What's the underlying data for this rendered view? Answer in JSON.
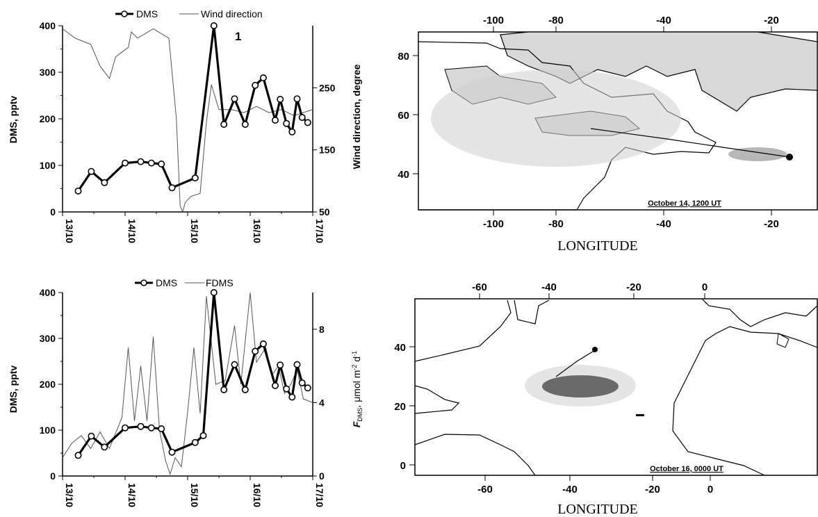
{
  "chart_data": [
    {
      "type": "line",
      "panel_label": "1",
      "legend": [
        "DMS",
        "Wind direction"
      ],
      "ylabel": "DMS, pptv",
      "ylabel_right": "Wind direction, degree",
      "ylim": [
        0,
        400
      ],
      "ylim_right": [
        50,
        350
      ],
      "yticks": [
        "0",
        "100",
        "200",
        "300",
        "400"
      ],
      "yticks_right": [
        "50",
        "150",
        "250"
      ],
      "xlim": [
        13.0,
        17.0
      ],
      "xticks": [
        "13/10",
        "14/10",
        "15/10",
        "16/10",
        "17/10"
      ],
      "series": [
        {
          "name": "DMS",
          "x": [
            13.25,
            13.46,
            13.67,
            14.0,
            14.25,
            14.42,
            14.58,
            14.75,
            15.12,
            15.42,
            15.58,
            15.75,
            15.92,
            16.08,
            16.21,
            16.4,
            16.48,
            16.58,
            16.67,
            16.75,
            16.83,
            16.92
          ],
          "y": [
            45,
            87,
            63,
            105,
            108,
            105,
            103,
            52,
            73,
            400,
            188,
            243,
            188,
            272,
            288,
            197,
            242,
            190,
            172,
            243,
            203,
            192
          ]
        },
        {
          "name": "Wind direction",
          "x": [
            13.0,
            13.2,
            13.45,
            13.6,
            13.75,
            13.85,
            14.05,
            14.1,
            14.2,
            14.45,
            14.7,
            14.82,
            14.88,
            14.92,
            14.96,
            15.05,
            15.2,
            15.3,
            15.38,
            15.5,
            15.7,
            15.9,
            16.1,
            16.3,
            16.5,
            16.7,
            17.0
          ],
          "y": [
            345,
            330,
            320,
            285,
            265,
            300,
            315,
            340,
            330,
            345,
            330,
            200,
            60,
            50,
            65,
            75,
            80,
            195,
            255,
            215,
            215,
            210,
            220,
            210,
            215,
            205,
            215
          ]
        }
      ]
    },
    {
      "type": "map",
      "caption": "October 14, 1200 UT",
      "xlabel": "LONGITUDE",
      "xticks": [
        "-100",
        "-80",
        "-40",
        "-20"
      ],
      "yticks": [
        "40",
        "60",
        "80"
      ],
      "marker": {
        "lon": -15,
        "lat": 46
      }
    },
    {
      "type": "line",
      "legend": [
        "DMS",
        "FDMS"
      ],
      "ylabel": "DMS, pptv",
      "ylabel_right_main": "F",
      "ylabel_right_sub": "DMS",
      "ylabel_right_rest": ", μmol m",
      "ylabel_right_sup": "-2",
      "ylabel_right_tail": " d",
      "ylabel_right_sup2": "-1",
      "ylim": [
        0,
        400
      ],
      "ylim_right": [
        0,
        10
      ],
      "yticks": [
        "0",
        "100",
        "200",
        "300",
        "400"
      ],
      "yticks_right": [
        "0",
        "4",
        "8"
      ],
      "xlim": [
        13.0,
        17.0
      ],
      "xticks": [
        "13/10",
        "14/10",
        "15/10",
        "16/10",
        "17/10"
      ],
      "series": [
        {
          "name": "DMS",
          "x": [
            13.25,
            13.46,
            13.67,
            14.0,
            14.25,
            14.42,
            14.58,
            14.75,
            15.12,
            15.25,
            15.42,
            15.58,
            15.75,
            15.92,
            16.08,
            16.21,
            16.4,
            16.48,
            16.58,
            16.67,
            16.75,
            16.83,
            16.92
          ],
          "y": [
            45,
            87,
            63,
            105,
            108,
            105,
            103,
            52,
            73,
            88,
            400,
            188,
            243,
            188,
            272,
            288,
            197,
            242,
            190,
            172,
            243,
            203,
            192
          ]
        },
        {
          "name": "FDMS",
          "x": [
            13.0,
            13.15,
            13.3,
            13.45,
            13.6,
            13.75,
            13.95,
            14.05,
            14.15,
            14.25,
            14.35,
            14.45,
            14.55,
            14.65,
            14.72,
            14.8,
            14.9,
            15.0,
            15.1,
            15.2,
            15.3,
            15.45,
            15.6,
            15.75,
            15.85,
            16.0,
            16.1,
            16.25,
            16.35,
            16.45,
            16.55,
            16.65,
            16.75,
            16.85,
            17.0
          ],
          "y": [
            1.0,
            1.8,
            2.2,
            1.5,
            2.4,
            1.5,
            3.2,
            7.0,
            3.0,
            6.0,
            3.0,
            7.6,
            2.5,
            0.8,
            0.1,
            1.0,
            0.5,
            3.5,
            7.0,
            3.4,
            9.8,
            5.0,
            5.2,
            8.2,
            5.0,
            10.0,
            6.2,
            7.0,
            5.5,
            6.0,
            4.5,
            5.0,
            5.8,
            4.2,
            4.0
          ]
        }
      ]
    },
    {
      "type": "map",
      "caption": "October 16, 0000 UT",
      "xlabel": "LONGITUDE",
      "xticks_top": [
        "-60",
        "-40",
        "-20",
        "0"
      ],
      "xticks_bottom": [
        "-60",
        "-40",
        "-20",
        "0"
      ],
      "yticks": [
        "0",
        "20",
        "40"
      ],
      "marker": {
        "lon": -34,
        "lat": 38
      }
    }
  ]
}
